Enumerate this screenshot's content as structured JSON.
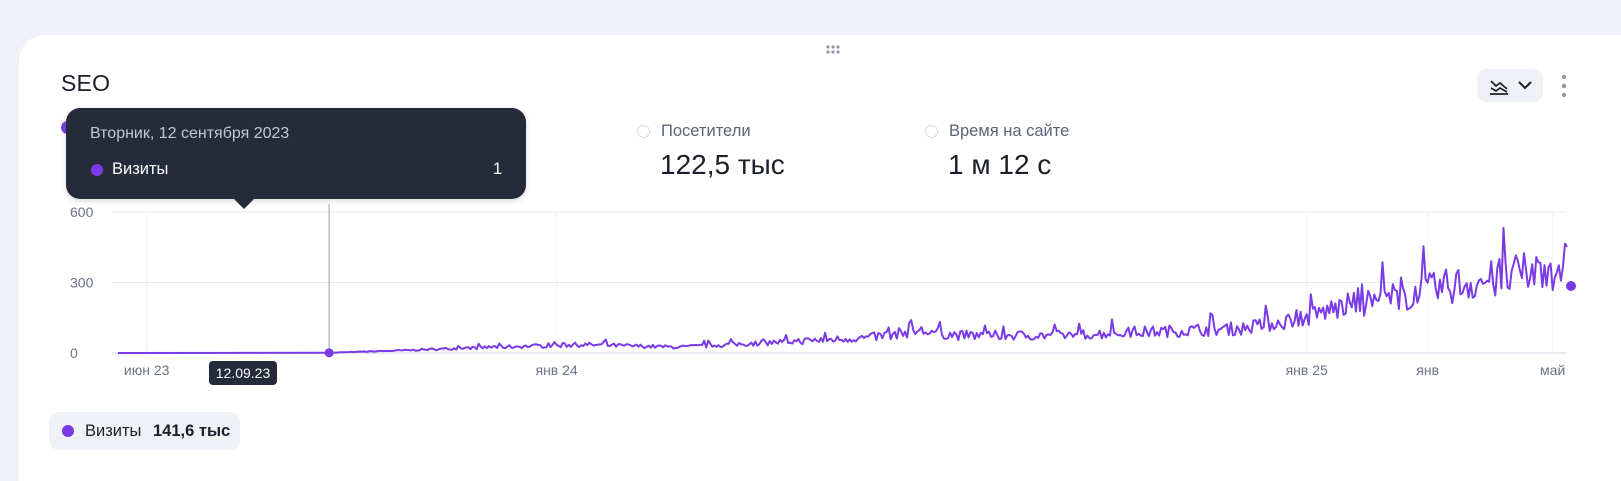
{
  "widget": {
    "title": "SEO"
  },
  "metrics": [
    {
      "label": "Посетители",
      "value": "122,5 тыс"
    },
    {
      "label": "Время на сайте",
      "value": "1 м 12 с"
    }
  ],
  "tooltip": {
    "date": "Вторник, 12 сентября 2023",
    "series": "Визиты",
    "value": "1"
  },
  "hover_x_label": "12.09.23",
  "legend": {
    "name": "Визиты",
    "total": "141,6 тыс"
  },
  "icons": [
    "drag-handle-icon",
    "line-chart-icon",
    "chevron-down-icon",
    "more-vertical-icon"
  ],
  "colors": {
    "series": "#7a3be6",
    "tooltip_bg": "#262b3a",
    "grid": "#e3e7ee",
    "page_bg": "#eff2f6"
  },
  "chart_data": {
    "type": "line",
    "x_tick_labels": [
      "июн 23",
      "янв 24",
      "янв 25",
      "янв",
      "май"
    ],
    "y_ticks": [
      0,
      300,
      600
    ],
    "ylim": [
      0,
      600
    ],
    "xlim": [
      "2023-06-01",
      "2025-05-08"
    ],
    "grid": true,
    "series": [
      {
        "name": "Визиты",
        "x": [
          "2023-06-01",
          "2023-09-12",
          "2023-10-15",
          "2023-12-01",
          "2024-01-15",
          "2024-03-01",
          "2024-04-15",
          "2024-06-01",
          "2024-06-25",
          "2024-07-15",
          "2024-09-01",
          "2024-10-15",
          "2024-12-01",
          "2024-12-31",
          "2025-01-15",
          "2025-02-15",
          "2025-03-15",
          "2025-04-01",
          "2025-04-20",
          "2025-05-08"
        ],
        "values": [
          0,
          1,
          10,
          25,
          35,
          25,
          45,
          65,
          95,
          75,
          75,
          90,
          105,
          150,
          190,
          240,
          290,
          310,
          340,
          380
        ]
      }
    ]
  }
}
